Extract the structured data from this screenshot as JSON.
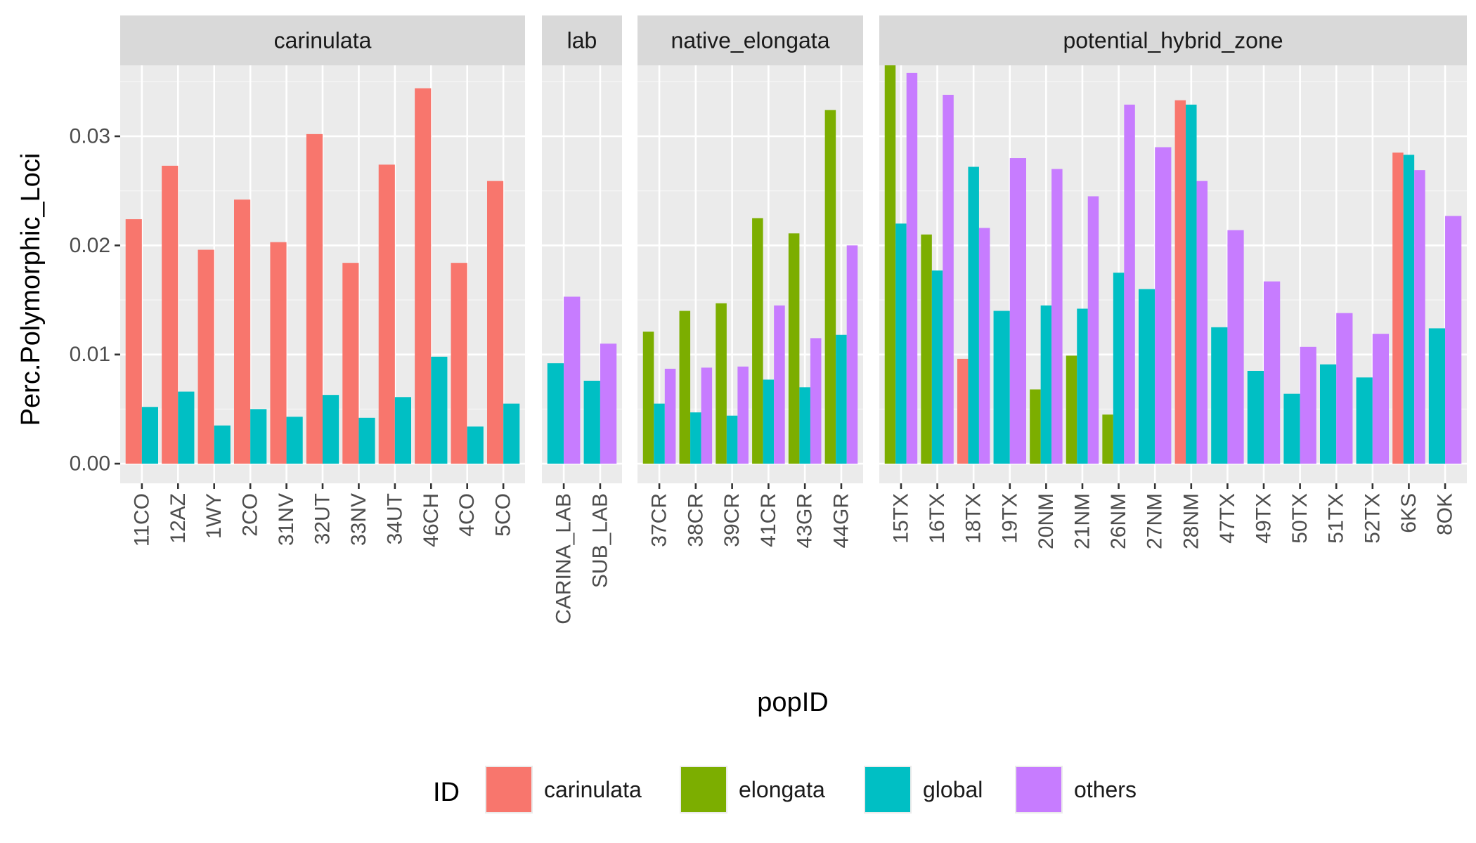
{
  "chart_data": {
    "type": "bar",
    "xlabel": "popID",
    "ylabel": "Perc.Polymorphic_Loci",
    "ylim": [
      -0.0018,
      0.0365
    ],
    "yticks": [
      0.0,
      0.01,
      0.02,
      0.03
    ],
    "ytick_labels": [
      "0.00",
      "0.01",
      "0.02",
      "0.03"
    ],
    "grid": true,
    "legend_title": "ID",
    "legend_position": "bottom",
    "series": [
      {
        "name": "carinulata",
        "color": "#F8766D"
      },
      {
        "name": "elongata",
        "color": "#7CAE00"
      },
      {
        "name": "global",
        "color": "#00BFC4"
      },
      {
        "name": "others",
        "color": "#C77CFF"
      }
    ],
    "facets": [
      {
        "name": "carinulata",
        "categories": [
          "11CO",
          "12AZ",
          "1WY",
          "2CO",
          "31NV",
          "32UT",
          "33NV",
          "34UT",
          "46CH",
          "4CO",
          "5CO"
        ],
        "groups": [
          [
            {
              "series": "carinulata",
              "value": 0.0224
            },
            {
              "series": "global",
              "value": 0.0052
            }
          ],
          [
            {
              "series": "carinulata",
              "value": 0.0273
            },
            {
              "series": "global",
              "value": 0.0066
            }
          ],
          [
            {
              "series": "carinulata",
              "value": 0.0196
            },
            {
              "series": "global",
              "value": 0.0035
            }
          ],
          [
            {
              "series": "carinulata",
              "value": 0.0242
            },
            {
              "series": "global",
              "value": 0.005
            }
          ],
          [
            {
              "series": "carinulata",
              "value": 0.0203
            },
            {
              "series": "global",
              "value": 0.0043
            }
          ],
          [
            {
              "series": "carinulata",
              "value": 0.0302
            },
            {
              "series": "global",
              "value": 0.0063
            }
          ],
          [
            {
              "series": "carinulata",
              "value": 0.0184
            },
            {
              "series": "global",
              "value": 0.0042
            }
          ],
          [
            {
              "series": "carinulata",
              "value": 0.0274
            },
            {
              "series": "global",
              "value": 0.0061
            }
          ],
          [
            {
              "series": "carinulata",
              "value": 0.0344
            },
            {
              "series": "global",
              "value": 0.0098
            }
          ],
          [
            {
              "series": "carinulata",
              "value": 0.0184
            },
            {
              "series": "global",
              "value": 0.0034
            }
          ],
          [
            {
              "series": "carinulata",
              "value": 0.0259
            },
            {
              "series": "global",
              "value": 0.0055
            }
          ]
        ]
      },
      {
        "name": "lab",
        "categories": [
          "CARINA_LAB",
          "SUB_LAB"
        ],
        "groups": [
          [
            {
              "series": "global",
              "value": 0.0092
            },
            {
              "series": "others",
              "value": 0.0153
            }
          ],
          [
            {
              "series": "global",
              "value": 0.0076
            },
            {
              "series": "others",
              "value": 0.011
            }
          ]
        ]
      },
      {
        "name": "native_elongata",
        "categories": [
          "37CR",
          "38CR",
          "39CR",
          "41CR",
          "43GR",
          "44GR"
        ],
        "groups": [
          [
            {
              "series": "elongata",
              "value": 0.0121
            },
            {
              "series": "global",
              "value": 0.0055
            },
            {
              "series": "others",
              "value": 0.0087
            }
          ],
          [
            {
              "series": "elongata",
              "value": 0.014
            },
            {
              "series": "global",
              "value": 0.0047
            },
            {
              "series": "others",
              "value": 0.0088
            }
          ],
          [
            {
              "series": "elongata",
              "value": 0.0147
            },
            {
              "series": "global",
              "value": 0.0044
            },
            {
              "series": "others",
              "value": 0.0089
            }
          ],
          [
            {
              "series": "elongata",
              "value": 0.0225
            },
            {
              "series": "global",
              "value": 0.0077
            },
            {
              "series": "others",
              "value": 0.0145
            }
          ],
          [
            {
              "series": "elongata",
              "value": 0.0211
            },
            {
              "series": "global",
              "value": 0.007
            },
            {
              "series": "others",
              "value": 0.0115
            }
          ],
          [
            {
              "series": "elongata",
              "value": 0.0324
            },
            {
              "series": "global",
              "value": 0.0118
            },
            {
              "series": "others",
              "value": 0.02
            }
          ]
        ]
      },
      {
        "name": "potential_hybrid_zone",
        "categories": [
          "15TX",
          "16TX",
          "18TX",
          "19TX",
          "20NM",
          "21NM",
          "26NM",
          "27NM",
          "28NM",
          "47TX",
          "49TX",
          "50TX",
          "51TX",
          "52TX",
          "6KS",
          "8OK"
        ],
        "groups": [
          [
            {
              "series": "elongata",
              "value": 0.0365
            },
            {
              "series": "global",
              "value": 0.022
            },
            {
              "series": "others",
              "value": 0.0358
            }
          ],
          [
            {
              "series": "elongata",
              "value": 0.021
            },
            {
              "series": "global",
              "value": 0.0177
            },
            {
              "series": "others",
              "value": 0.0338
            }
          ],
          [
            {
              "series": "carinulata",
              "value": 0.0096
            },
            {
              "series": "global",
              "value": 0.0272
            },
            {
              "series": "others",
              "value": 0.0216
            }
          ],
          [
            {
              "series": "global",
              "value": 0.014
            },
            {
              "series": "others",
              "value": 0.028
            }
          ],
          [
            {
              "series": "elongata",
              "value": 0.0068
            },
            {
              "series": "global",
              "value": 0.0145
            },
            {
              "series": "others",
              "value": 0.027
            }
          ],
          [
            {
              "series": "elongata",
              "value": 0.0099
            },
            {
              "series": "global",
              "value": 0.0142
            },
            {
              "series": "others",
              "value": 0.0245
            }
          ],
          [
            {
              "series": "elongata",
              "value": 0.0045
            },
            {
              "series": "global",
              "value": 0.0175
            },
            {
              "series": "others",
              "value": 0.0329
            }
          ],
          [
            {
              "series": "global",
              "value": 0.016
            },
            {
              "series": "others",
              "value": 0.029
            }
          ],
          [
            {
              "series": "carinulata",
              "value": 0.0333
            },
            {
              "series": "global",
              "value": 0.0329
            },
            {
              "series": "others",
              "value": 0.0259
            }
          ],
          [
            {
              "series": "global",
              "value": 0.0125
            },
            {
              "series": "others",
              "value": 0.0214
            }
          ],
          [
            {
              "series": "global",
              "value": 0.0085
            },
            {
              "series": "others",
              "value": 0.0167
            }
          ],
          [
            {
              "series": "global",
              "value": 0.0064
            },
            {
              "series": "others",
              "value": 0.0107
            }
          ],
          [
            {
              "series": "global",
              "value": 0.0091
            },
            {
              "series": "others",
              "value": 0.0138
            }
          ],
          [
            {
              "series": "global",
              "value": 0.0079
            },
            {
              "series": "others",
              "value": 0.0119
            }
          ],
          [
            {
              "series": "carinulata",
              "value": 0.0285
            },
            {
              "series": "global",
              "value": 0.0283
            },
            {
              "series": "others",
              "value": 0.0269
            }
          ],
          [
            {
              "series": "global",
              "value": 0.0124
            },
            {
              "series": "others",
              "value": 0.0227
            }
          ]
        ]
      }
    ]
  }
}
